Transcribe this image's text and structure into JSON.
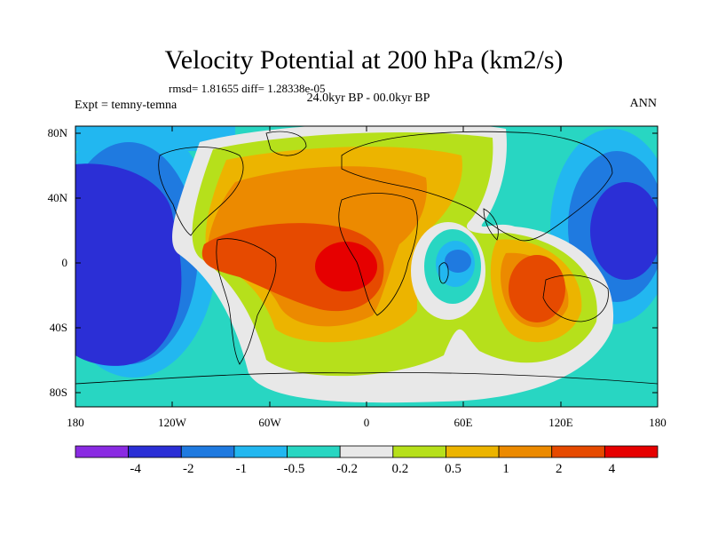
{
  "title": "Velocity Potential at 200 hPa (km2/s)",
  "stats": "rmsd= 1.81655 diff= 1.28338e-05",
  "left_label": "Expt = temny-temna",
  "center_label": "24.0kyr BP - 00.0kyr BP",
  "right_label": "ANN",
  "lat_ticks": [
    "80N",
    "40N",
    "0",
    "40S",
    "80S"
  ],
  "lon_ticks": [
    "180",
    "120W",
    "60W",
    "0",
    "60E",
    "120E",
    "180"
  ],
  "colorbar": {
    "labels": [
      "-4",
      "-2",
      "-1",
      "-0.5",
      "-0.2",
      "0.2",
      "0.5",
      "1",
      "2",
      "4"
    ],
    "colors": [
      "#8a2be2",
      "#2b2fd6",
      "#1f7ae0",
      "#22b7f0",
      "#28d6c2",
      "#e8e8e8",
      "#b6e01b",
      "#ecb400",
      "#ec8a00",
      "#e64a00",
      "#e60000"
    ]
  }
}
